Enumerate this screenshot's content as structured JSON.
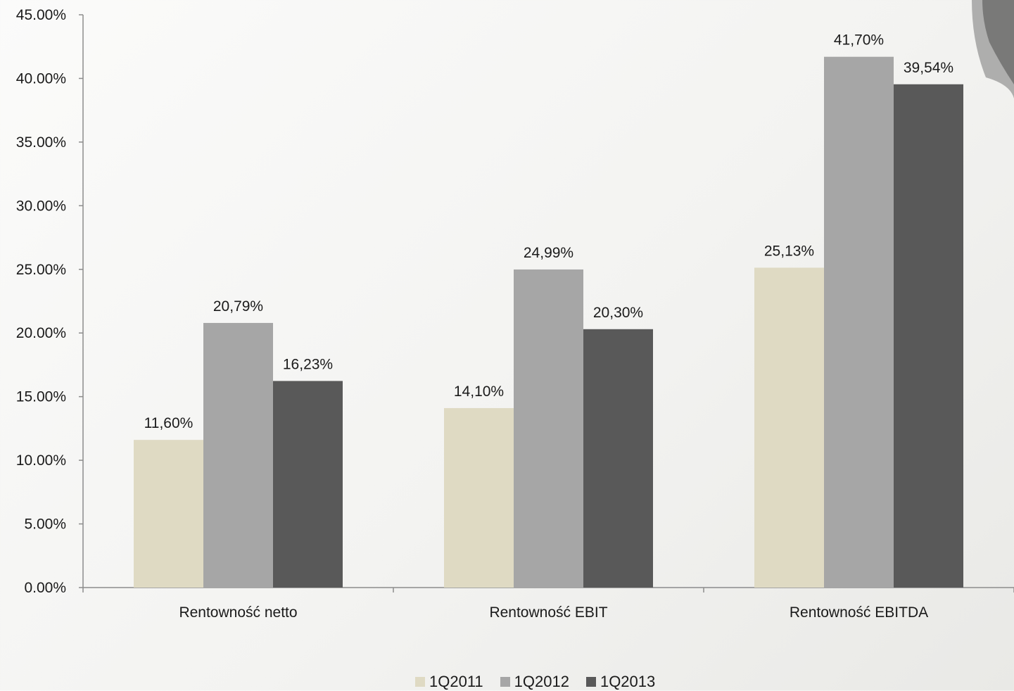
{
  "chart_data": {
    "type": "bar",
    "categories": [
      "Rentowność netto",
      "Rentowność EBIT",
      "Rentowność EBITDA"
    ],
    "series": [
      {
        "name": "1Q2011",
        "color": "#dfdac3",
        "values": [
          11.6,
          14.1,
          25.13
        ],
        "labels": [
          "11,60%",
          "14,10%",
          "25,13%"
        ]
      },
      {
        "name": "1Q2012",
        "color": "#a6a6a6",
        "values": [
          20.79,
          24.99,
          41.7
        ],
        "labels": [
          "20,79%",
          "24,99%",
          "41,70%"
        ]
      },
      {
        "name": "1Q2013",
        "color": "#595959",
        "values": [
          16.23,
          20.3,
          39.54
        ],
        "labels": [
          "16,23%",
          "20,30%",
          "39,54%"
        ]
      }
    ],
    "ylim": [
      0,
      45
    ],
    "yticks": [
      "0.00%",
      "5.00%",
      "10.00%",
      "15.00%",
      "20.00%",
      "25.00%",
      "30.00%",
      "35.00%",
      "40.00%",
      "45.00%"
    ],
    "grid": false,
    "legend_position": "bottom-center"
  }
}
